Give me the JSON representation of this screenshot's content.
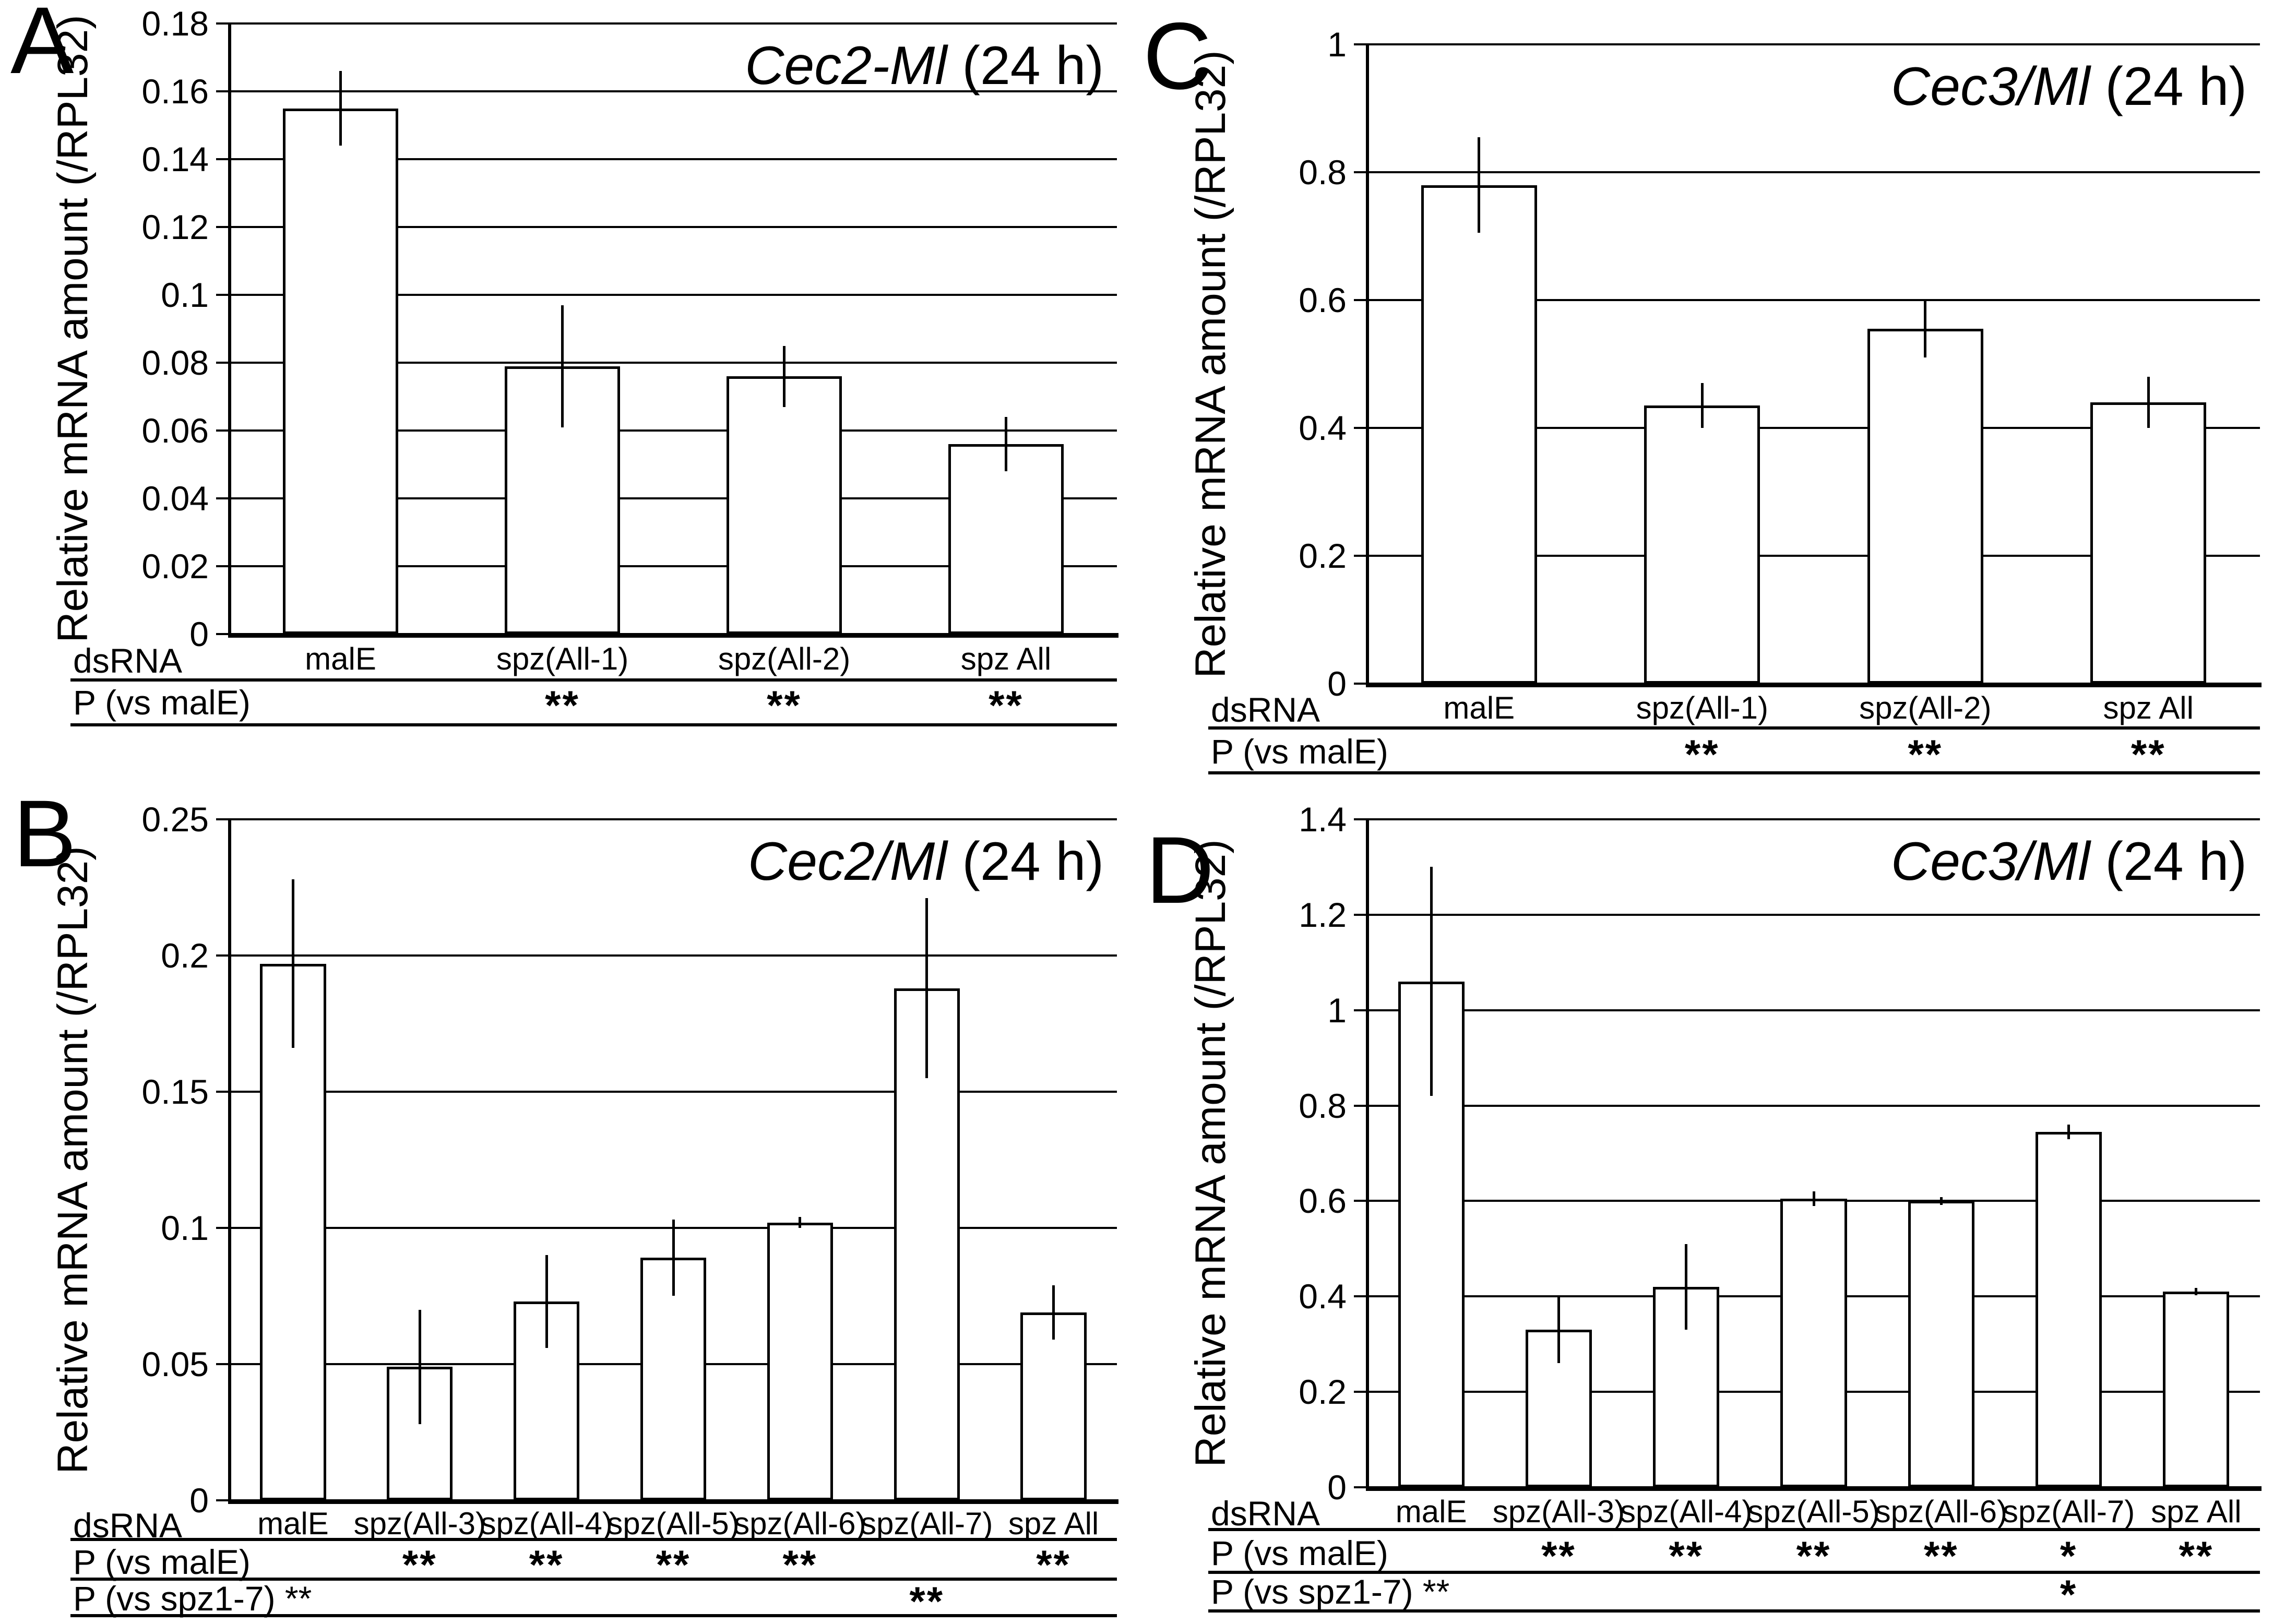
{
  "figure_ylabel": "Relative mRNA amount (/RPL32)",
  "chart_data": [
    {
      "panel_letter": "A",
      "type": "bar",
      "title_gene": "Cec2-Ml",
      "title_suffix": " (24 h)",
      "ylabel": "Relative mRNA amount (/RPL32)",
      "ylim": [
        0,
        0.18
      ],
      "grid": "horizontal",
      "yticks": [
        "0.18",
        "0.16",
        "0.14",
        "0.12",
        "0.1",
        "0.08",
        "0.06",
        "0.04",
        "0.02",
        "0"
      ],
      "x_row_label": "dsRNA",
      "categories": [
        "malE",
        "spz(All-1)",
        "spz(All-2)",
        "spz All"
      ],
      "values": [
        0.155,
        0.079,
        0.076,
        0.056
      ],
      "errors": [
        0.011,
        0.018,
        0.009,
        0.008
      ],
      "p_rows": [
        {
          "label": "P (vs malE)",
          "marks": [
            "",
            "**",
            "**",
            "**"
          ]
        }
      ]
    },
    {
      "panel_letter": "B",
      "type": "bar",
      "title_gene": "Cec2/Ml",
      "title_suffix": " (24 h)",
      "ylabel": "Relative mRNA amount (/RPL32)",
      "ylim": [
        0,
        0.25
      ],
      "grid": "horizontal",
      "yticks": [
        "0.25",
        "0.2",
        "0.15",
        "0.1",
        "0.05",
        "0"
      ],
      "x_row_label": "dsRNA",
      "categories": [
        "malE",
        "spz(All-3)",
        "spz(All-4)",
        "spz(All-5)",
        "spz(All-6)",
        "spz(All-7)",
        "spz All"
      ],
      "values": [
        0.197,
        0.049,
        0.073,
        0.089,
        0.102,
        0.188,
        0.069
      ],
      "errors": [
        0.031,
        0.021,
        0.017,
        0.014,
        0.002,
        0.033,
        0.01
      ],
      "p_rows": [
        {
          "label": "P (vs malE)",
          "marks": [
            "",
            "**",
            "**",
            "**",
            "**",
            "",
            "**"
          ]
        },
        {
          "label": "P (vs spz1-7) **",
          "marks": [
            "",
            "",
            "",
            "",
            "",
            "**",
            ""
          ]
        }
      ]
    },
    {
      "panel_letter": "C",
      "type": "bar",
      "title_gene": "Cec3/Ml",
      "title_suffix": " (24 h)",
      "ylabel": "Relative mRNA amount (/RPL32)",
      "ylim": [
        0,
        1
      ],
      "grid": "horizontal",
      "yticks": [
        "1",
        "0.8",
        "0.6",
        "0.4",
        "0.2",
        "0"
      ],
      "x_row_label": "dsRNA",
      "categories": [
        "malE",
        "spz(All-1)",
        "spz(All-2)",
        "spz All"
      ],
      "values": [
        0.78,
        0.435,
        0.555,
        0.44
      ],
      "errors": [
        0.075,
        0.035,
        0.045,
        0.04
      ],
      "p_rows": [
        {
          "label": "P (vs malE)",
          "marks": [
            "",
            "**",
            "**",
            "**"
          ]
        }
      ]
    },
    {
      "panel_letter": "D",
      "type": "bar",
      "title_gene": "Cec3/Ml",
      "title_suffix": " (24 h)",
      "ylabel": "Relative mRNA amount (/RPL32)",
      "ylim": [
        0,
        1.4
      ],
      "grid": "horizontal",
      "yticks": [
        "1.4",
        "1.2",
        "1",
        "0.8",
        "0.6",
        "0.4",
        "0.2",
        "0"
      ],
      "x_row_label": "dsRNA",
      "categories": [
        "malE",
        "spz(All-3)",
        "spz(All-4)",
        "spz(All-5)",
        "spz(All-6)",
        "spz(All-7)",
        "spz All"
      ],
      "values": [
        1.06,
        0.33,
        0.42,
        0.605,
        0.6,
        0.745,
        0.41
      ],
      "errors": [
        0.24,
        0.07,
        0.09,
        0.015,
        0.008,
        0.015,
        0.008
      ],
      "p_rows": [
        {
          "label": "P (vs malE)",
          "marks": [
            "",
            "**",
            "**",
            "**",
            "**",
            "*",
            "**"
          ]
        },
        {
          "label": "P (vs spz1-7) **",
          "marks": [
            "",
            "",
            "",
            "",
            "",
            "*",
            ""
          ]
        }
      ]
    }
  ]
}
